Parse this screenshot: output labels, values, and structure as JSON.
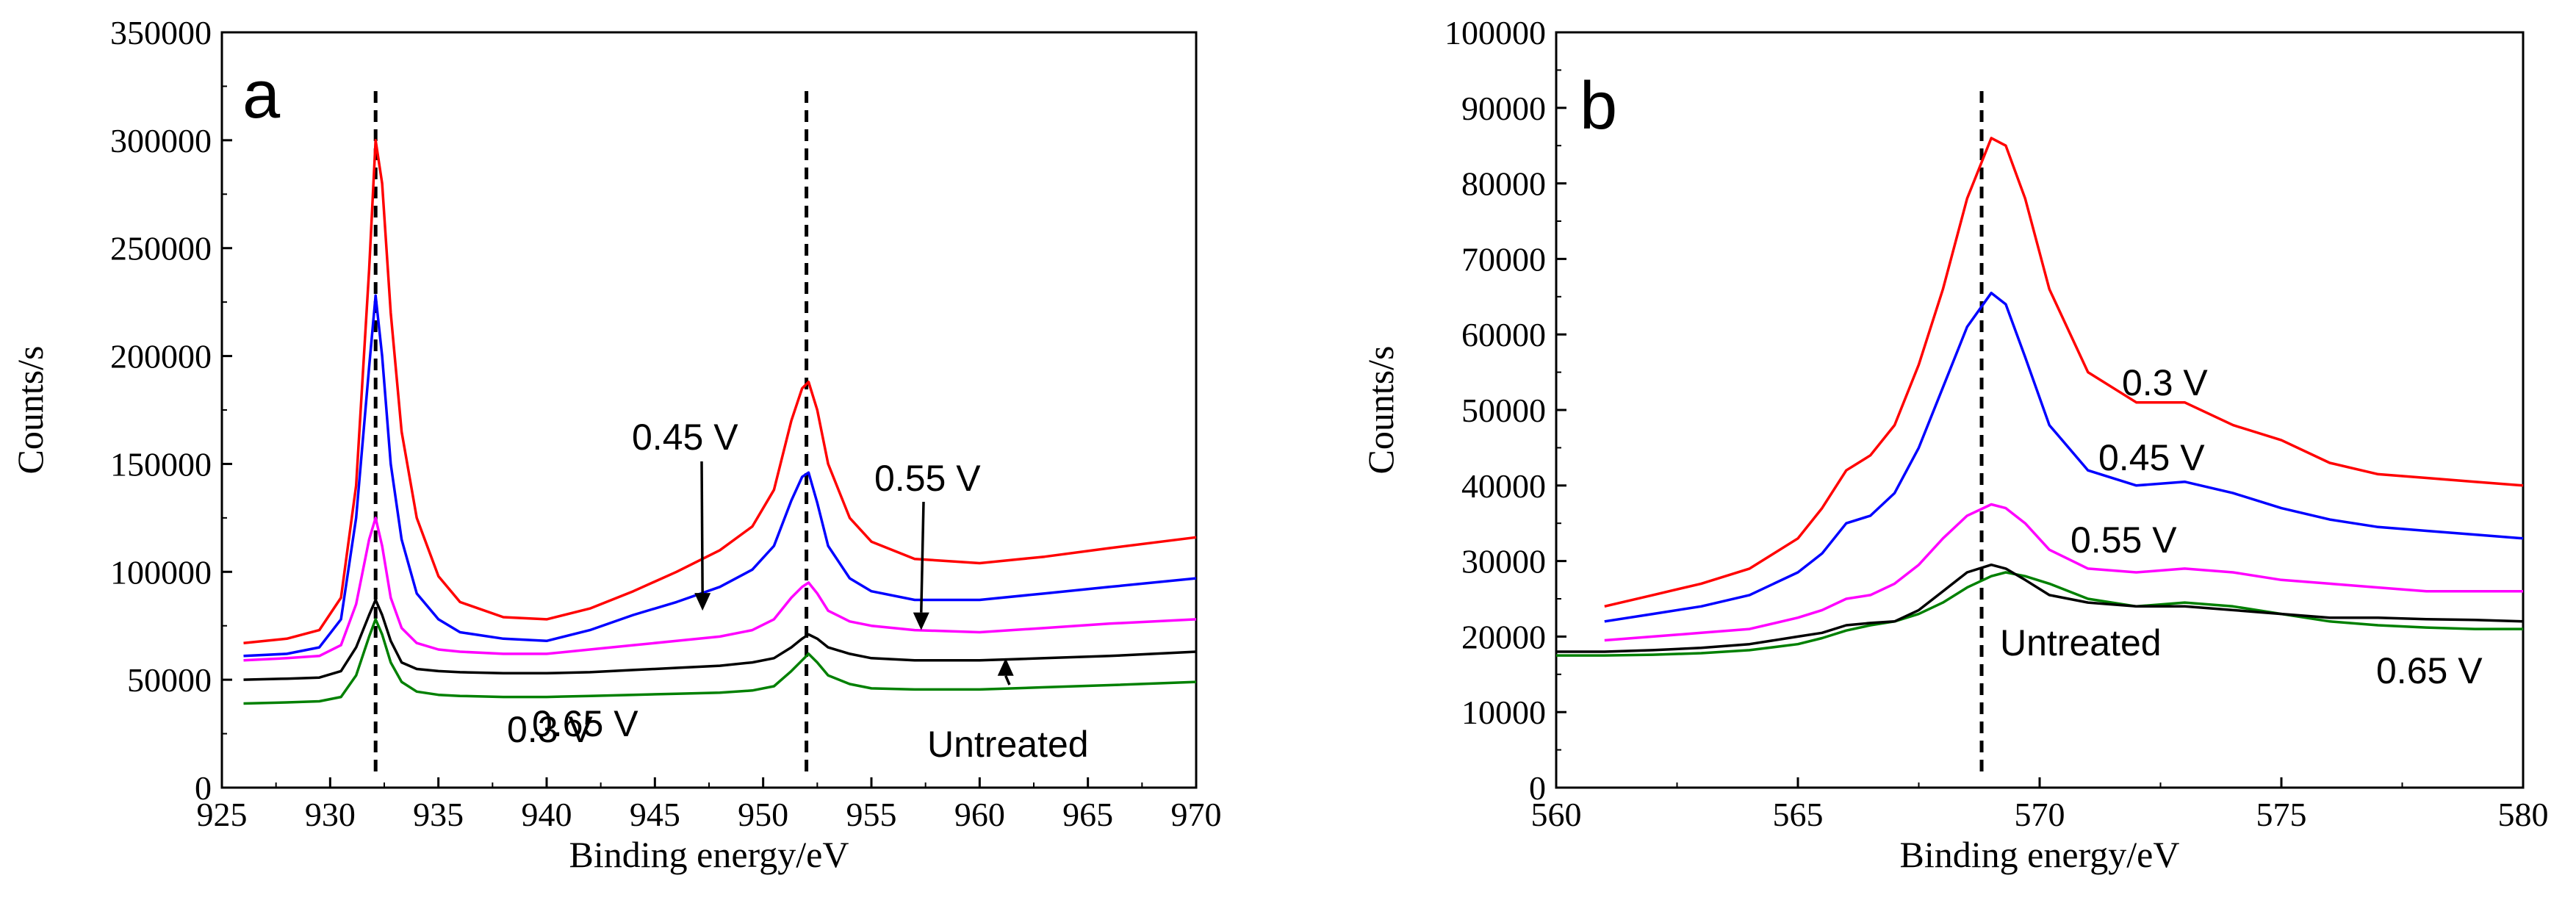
{
  "chart_data": [
    {
      "panel": "a",
      "type": "line",
      "xlabel": "Binding energy/eV",
      "ylabel": "Counts/s",
      "xlim": [
        925,
        970
      ],
      "ylim": [
        0,
        350000
      ],
      "xticks": [
        925,
        930,
        935,
        940,
        945,
        950,
        955,
        960,
        965,
        970
      ],
      "yticks": [
        0,
        50000,
        100000,
        150000,
        200000,
        250000,
        300000,
        350000
      ],
      "reference_lines_x": [
        932.1,
        952.0
      ],
      "series": [
        {
          "name": "0.3 V",
          "color": "#ff0000",
          "x": [
            926,
            928,
            929.5,
            930.5,
            931.2,
            931.8,
            932.1,
            932.4,
            932.8,
            933.3,
            934,
            935,
            936,
            938,
            940,
            942,
            944,
            946,
            948,
            949.5,
            950.5,
            951.3,
            951.8,
            952.1,
            952.5,
            953,
            954,
            955,
            957,
            960,
            963,
            966,
            970
          ],
          "y": [
            67000,
            69000,
            73000,
            88000,
            140000,
            240000,
            300000,
            280000,
            220000,
            165000,
            125000,
            98000,
            86000,
            79000,
            78000,
            83000,
            91000,
            100000,
            110000,
            121000,
            138000,
            170000,
            185000,
            188000,
            175000,
            150000,
            125000,
            114000,
            106000,
            104000,
            107000,
            111000,
            116000
          ]
        },
        {
          "name": "0.45 V",
          "color": "#0000ff",
          "x": [
            926,
            928,
            929.5,
            930.5,
            931.2,
            931.8,
            932.1,
            932.4,
            932.8,
            933.3,
            934,
            935,
            936,
            938,
            940,
            942,
            944,
            946,
            948,
            949.5,
            950.5,
            951.3,
            951.8,
            952.1,
            952.5,
            953,
            954,
            955,
            957,
            960,
            963,
            966,
            970
          ],
          "y": [
            61000,
            62000,
            65000,
            78000,
            125000,
            195000,
            228000,
            200000,
            150000,
            115000,
            90000,
            78000,
            72000,
            69000,
            68000,
            73000,
            80000,
            86000,
            93000,
            101000,
            112000,
            133000,
            144000,
            146000,
            132000,
            112000,
            97000,
            91000,
            87000,
            87000,
            90000,
            93000,
            97000
          ]
        },
        {
          "name": "0.55 V",
          "color": "#ff00ff",
          "x": [
            926,
            928,
            929.5,
            930.5,
            931.2,
            931.8,
            932.1,
            932.4,
            932.8,
            933.3,
            934,
            935,
            936,
            938,
            940,
            942,
            944,
            946,
            948,
            949.5,
            950.5,
            951.3,
            951.8,
            952.1,
            952.5,
            953,
            954,
            955,
            957,
            960,
            963,
            966,
            970
          ],
          "y": [
            59000,
            60000,
            61000,
            66000,
            85000,
            115000,
            125000,
            112000,
            88000,
            74000,
            67000,
            64000,
            63000,
            62000,
            62000,
            64000,
            66000,
            68000,
            70000,
            73000,
            78000,
            88000,
            93000,
            95000,
            90000,
            82000,
            77000,
            75000,
            73000,
            72000,
            74000,
            76000,
            78000
          ]
        },
        {
          "name": "Untreated",
          "color": "#000000",
          "x": [
            926,
            928,
            929.5,
            930.5,
            931.2,
            931.8,
            932.1,
            932.4,
            932.8,
            933.3,
            934,
            935,
            936,
            938,
            940,
            942,
            944,
            946,
            948,
            949.5,
            950.5,
            951.3,
            951.8,
            952.1,
            952.5,
            953,
            954,
            955,
            957,
            960,
            963,
            966,
            970
          ],
          "y": [
            50000,
            50500,
            51000,
            54000,
            65000,
            80000,
            87000,
            80000,
            68000,
            58000,
            55000,
            54000,
            53500,
            53000,
            53000,
            53500,
            54500,
            55500,
            56500,
            58000,
            60000,
            65000,
            69000,
            71000,
            69000,
            65000,
            62000,
            60000,
            59000,
            59000,
            60000,
            61000,
            63000
          ]
        },
        {
          "name": "0.65 V",
          "color": "#008000",
          "x": [
            926,
            928,
            929.5,
            930.5,
            931.2,
            931.8,
            932.1,
            932.4,
            932.8,
            933.3,
            934,
            935,
            936,
            938,
            940,
            942,
            944,
            946,
            948,
            949.5,
            950.5,
            951.3,
            951.8,
            952.1,
            952.5,
            953,
            954,
            955,
            957,
            960,
            963,
            966,
            970
          ],
          "y": [
            39000,
            39500,
            40000,
            42000,
            52000,
            70000,
            78000,
            71000,
            58000,
            49000,
            44500,
            43000,
            42500,
            42000,
            42000,
            42500,
            43000,
            43500,
            44000,
            45000,
            47000,
            54000,
            59000,
            62000,
            58000,
            52000,
            48000,
            46000,
            45500,
            45500,
            46500,
            47500,
            49000
          ]
        }
      ],
      "annotations": [
        {
          "text": "a",
          "kind": "panel-letter"
        },
        {
          "text": "0.3 V",
          "series": "0.3 V"
        },
        {
          "text": "0.45 V",
          "series": "0.45 V",
          "arrow_to": [
            947.2,
            82000
          ]
        },
        {
          "text": "0.55 V",
          "series": "0.55 V",
          "arrow_to": [
            957.3,
            73000
          ]
        },
        {
          "text": "Untreated",
          "series": "Untreated",
          "arrow_to": [
            961.2,
            60000
          ]
        },
        {
          "text": "0.65 V",
          "series": "0.65 V"
        }
      ]
    },
    {
      "panel": "b",
      "type": "line",
      "xlabel": "Binding energy/eV",
      "ylabel": "Counts/s",
      "xlim": [
        560,
        580
      ],
      "ylim": [
        0,
        100000
      ],
      "xticks": [
        560,
        565,
        570,
        575,
        580
      ],
      "yticks": [
        0,
        10000,
        20000,
        30000,
        40000,
        50000,
        60000,
        70000,
        80000,
        90000,
        100000
      ],
      "reference_lines_x": [
        568.8
      ],
      "series": [
        {
          "name": "0.3 V",
          "color": "#ff0000",
          "x": [
            561,
            562,
            563,
            564,
            565,
            565.5,
            566,
            566.5,
            567,
            567.5,
            568,
            568.5,
            569,
            569.3,
            569.7,
            570.2,
            571,
            572,
            573,
            574,
            575,
            576,
            577,
            578,
            579,
            580
          ],
          "y": [
            24000,
            25500,
            27000,
            29000,
            33000,
            37000,
            42000,
            44000,
            48000,
            56000,
            66000,
            78000,
            86000,
            85000,
            78000,
            66000,
            55000,
            51000,
            51000,
            48000,
            46000,
            43000,
            41500,
            41000,
            40500,
            40000
          ]
        },
        {
          "name": "0.45 V",
          "color": "#0000ff",
          "x": [
            561,
            562,
            563,
            564,
            565,
            565.5,
            566,
            566.5,
            567,
            567.5,
            568,
            568.5,
            569,
            569.3,
            569.7,
            570.2,
            571,
            572,
            573,
            574,
            575,
            576,
            577,
            578,
            579,
            580
          ],
          "y": [
            22000,
            23000,
            24000,
            25500,
            28500,
            31000,
            35000,
            36000,
            39000,
            45000,
            53000,
            61000,
            65500,
            64000,
            57000,
            48000,
            42000,
            40000,
            40500,
            39000,
            37000,
            35500,
            34500,
            34000,
            33500,
            33000
          ]
        },
        {
          "name": "0.55 V",
          "color": "#ff00ff",
          "x": [
            561,
            562,
            563,
            564,
            565,
            565.5,
            566,
            566.5,
            567,
            567.5,
            568,
            568.5,
            569,
            569.3,
            569.7,
            570.2,
            571,
            572,
            573,
            574,
            575,
            576,
            577,
            578,
            579,
            580
          ],
          "y": [
            19500,
            20000,
            20500,
            21000,
            22500,
            23500,
            25000,
            25500,
            27000,
            29500,
            33000,
            36000,
            37500,
            37000,
            35000,
            31500,
            29000,
            28500,
            29000,
            28500,
            27500,
            27000,
            26500,
            26000,
            26000,
            26000
          ]
        },
        {
          "name": "Untreated",
          "color": "#000000",
          "x": [
            560,
            561,
            562,
            563,
            564,
            565,
            565.5,
            566,
            566.5,
            567,
            567.5,
            568,
            568.5,
            569,
            569.3,
            569.7,
            570.2,
            571,
            572,
            573,
            574,
            575,
            576,
            577,
            578,
            579,
            580
          ],
          "y": [
            18000,
            18000,
            18200,
            18500,
            19000,
            20000,
            20500,
            21500,
            21800,
            22000,
            23500,
            26000,
            28500,
            29500,
            29000,
            27500,
            25500,
            24500,
            24000,
            24000,
            23500,
            23000,
            22500,
            22500,
            22300,
            22200,
            22000
          ]
        },
        {
          "name": "0.65 V",
          "color": "#008000",
          "x": [
            560,
            561,
            562,
            563,
            564,
            565,
            565.5,
            566,
            566.5,
            567,
            567.5,
            568,
            568.5,
            569,
            569.3,
            569.7,
            570.2,
            571,
            572,
            573,
            574,
            575,
            576,
            577,
            578,
            579,
            580
          ],
          "y": [
            17500,
            17500,
            17600,
            17800,
            18200,
            19000,
            19800,
            20800,
            21500,
            22000,
            23000,
            24500,
            26500,
            28000,
            28500,
            28000,
            27000,
            25000,
            24000,
            24500,
            24000,
            23000,
            22000,
            21500,
            21200,
            21000,
            21000
          ]
        }
      ],
      "annotations": [
        {
          "text": "b",
          "kind": "panel-letter"
        },
        {
          "text": "0.3 V",
          "series": "0.3 V"
        },
        {
          "text": "0.45 V",
          "series": "0.45 V"
        },
        {
          "text": "0.55 V",
          "series": "0.55 V"
        },
        {
          "text": "Untreated",
          "series": "Untreated"
        },
        {
          "text": "0.65 V",
          "series": "0.65 V"
        }
      ]
    }
  ]
}
